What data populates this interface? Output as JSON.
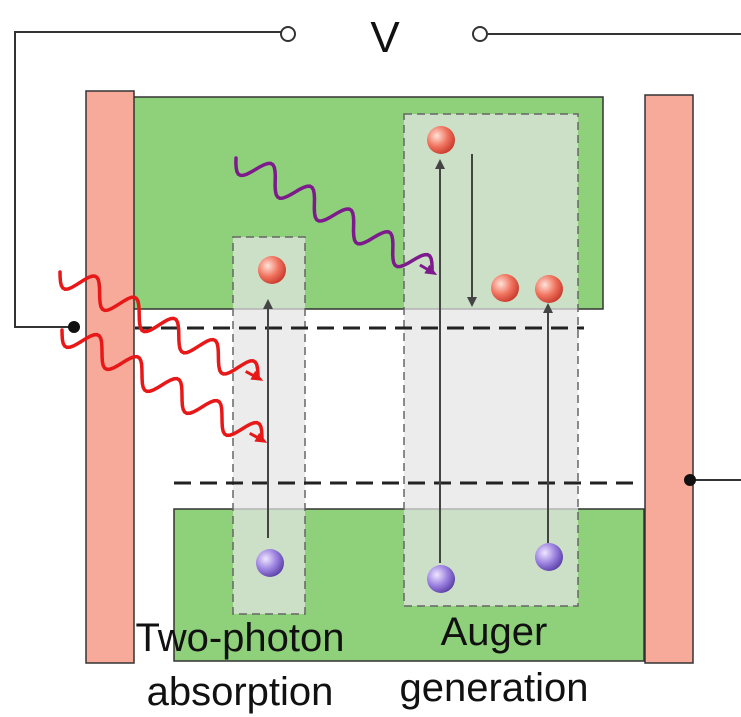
{
  "voltage_label": "V",
  "labels": {
    "two_photon_line1": "Two-photon",
    "two_photon_line2": "absorption",
    "auger_line1": "Auger",
    "auger_line2": "generation"
  },
  "colors": {
    "electrode": "#f7a99a",
    "band": "#8ed17a",
    "band_stroke": "#333333",
    "highlight_box": "#e6e6e6",
    "photon_red": "#e81818",
    "photon_purple": "#7d1a8c",
    "electron": "#e8564c",
    "hole": "#7a5fc9",
    "arrow": "#444444"
  },
  "icons": {
    "electron": "electron-particle-icon",
    "hole": "hole-particle-icon",
    "photon": "photon-wave-icon",
    "terminal": "voltage-terminal-icon"
  }
}
